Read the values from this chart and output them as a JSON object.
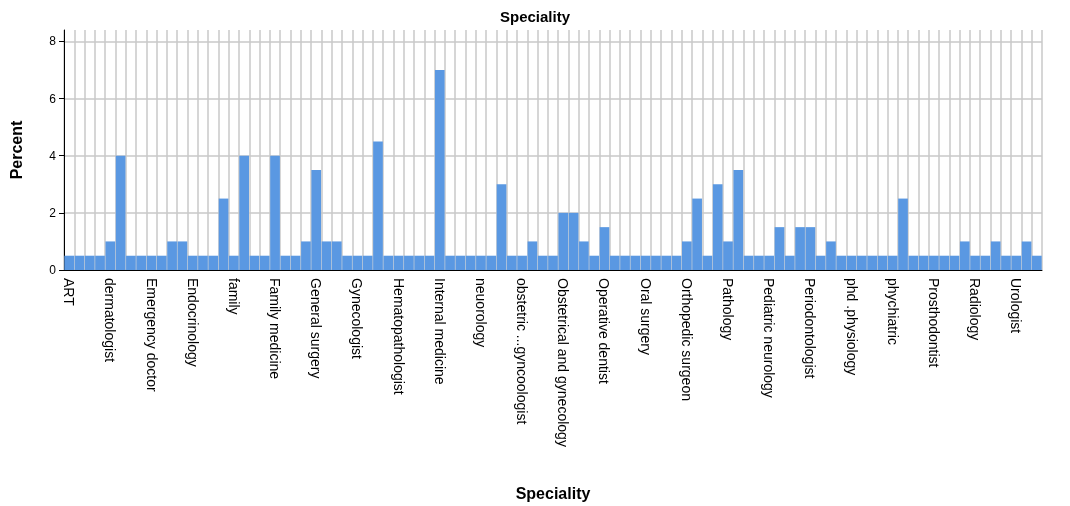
{
  "chart_data": {
    "type": "bar",
    "title": "Speciality",
    "xlabel": "Speciality",
    "ylabel": "Percent",
    "categories": [
      "ART",
      null,
      null,
      null,
      "dermatologist",
      null,
      null,
      null,
      "Emergency doctor",
      null,
      null,
      null,
      "Endocrinology",
      null,
      null,
      null,
      "family",
      null,
      null,
      null,
      "Family medicine",
      null,
      null,
      null,
      "General surgery",
      null,
      null,
      null,
      "Gynecologist",
      null,
      null,
      null,
      "Hematopathologist",
      null,
      null,
      null,
      "Internal medicine",
      null,
      null,
      null,
      "neuorology",
      null,
      null,
      null,
      "obstetric ...gyncoologist",
      null,
      null,
      null,
      "Obstetrical and gynecology",
      null,
      null,
      null,
      "Operative dentist",
      null,
      null,
      null,
      "Oral surgery",
      null,
      null,
      null,
      "Orthopedic surgeon",
      null,
      null,
      null,
      "Pathology",
      null,
      null,
      null,
      "Pediatric neurology",
      null,
      null,
      null,
      "Periodontologist",
      null,
      null,
      null,
      "phd .physiology",
      null,
      null,
      null,
      "phychiatric",
      null,
      null,
      null,
      "Prosthodontist",
      null,
      null,
      null,
      "Radiology",
      null,
      null,
      null,
      "Urologist",
      null,
      null
    ],
    "values": [
      0.5,
      0.5,
      0.5,
      0.5,
      1,
      4,
      0.5,
      0.5,
      0.5,
      0.5,
      1,
      1,
      0.5,
      0.5,
      0.5,
      2.5,
      0.5,
      4,
      0.5,
      0.5,
      4,
      0.5,
      0.5,
      1,
      3.5,
      1,
      1,
      0.5,
      0.5,
      0.5,
      4.5,
      0.5,
      0.5,
      0.5,
      0.5,
      0.5,
      7,
      0.5,
      0.5,
      0.5,
      0.5,
      0.5,
      3,
      0.5,
      0.5,
      1,
      0.5,
      0.5,
      2,
      2,
      1,
      0.5,
      1.5,
      0.5,
      0.5,
      0.5,
      0.5,
      0.5,
      0.5,
      0.5,
      1,
      2.5,
      0.5,
      3,
      1,
      3.5,
      0.5,
      0.5,
      0.5,
      1.5,
      0.5,
      1.5,
      1.5,
      0.5,
      1,
      0.5,
      0.5,
      0.5,
      0.5,
      0.5,
      0.5,
      2.5,
      0.5,
      0.5,
      0.5,
      0.5,
      0.5,
      1,
      0.5,
      0.5,
      1,
      0.5,
      0.5,
      1,
      0.5
    ],
    "color": "#5a98e2",
    "ylim": [
      0,
      8.4
    ],
    "yticks": [
      0,
      2,
      4,
      6,
      8
    ],
    "grid": true
  }
}
